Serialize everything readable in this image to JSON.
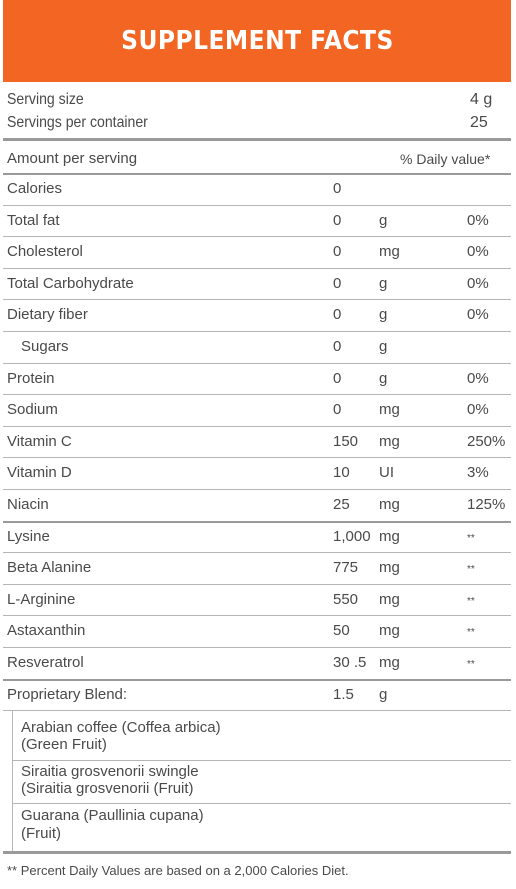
{
  "title": "SUPPLEMENT FACTS",
  "serving": {
    "size_label": "Serving size",
    "size_value": "4 g",
    "per_container_label": "Servings per container",
    "per_container_value": "25"
  },
  "columns": {
    "amount_label": "Amount per serving",
    "dv_label": "% Daily value*"
  },
  "rows": [
    {
      "name": "Calories",
      "amount": "0",
      "unit": "",
      "dv": ""
    },
    {
      "name": "Total fat",
      "amount": "0",
      "unit": "g",
      "dv": "0%"
    },
    {
      "name": "Cholesterol",
      "amount": "0",
      "unit": "mg",
      "dv": "0%"
    },
    {
      "name": "Total Carbohydrate",
      "amount": "0",
      "unit": "g",
      "dv": "0%"
    },
    {
      "name": "Dietary fiber",
      "amount": "0",
      "unit": "g",
      "dv": "0%"
    },
    {
      "name": "Sugars",
      "amount": "0",
      "unit": "g",
      "dv": ""
    },
    {
      "name": "Protein",
      "amount": "0",
      "unit": "g",
      "dv": "0%"
    },
    {
      "name": "Sodium",
      "amount": "0",
      "unit": "mg",
      "dv": "0%"
    },
    {
      "name": "Vitamin C",
      "amount": "150",
      "unit": "mg",
      "dv": "250%"
    },
    {
      "name": "Vitamin D",
      "amount": "10",
      "unit": "UI",
      "dv": "3%"
    },
    {
      "name": "Niacin",
      "amount": "25",
      "unit": "mg",
      "dv": "125%"
    },
    {
      "name": "Lysine",
      "amount": "1,000",
      "unit": "mg",
      "dv": "**"
    },
    {
      "name": "Beta Alanine",
      "amount": "775",
      "unit": "mg",
      "dv": "**"
    },
    {
      "name": "L-Arginine",
      "amount": "550",
      "unit": "mg",
      "dv": "**"
    },
    {
      "name": "Astaxanthin",
      "amount": "50",
      "unit": "mg",
      "dv": "**"
    },
    {
      "name": "Resveratrol",
      "amount": "30 .5",
      "unit": "mg",
      "dv": "**"
    },
    {
      "name": "Proprietary Blend:",
      "amount": "1.5",
      "unit": "g",
      "dv": ""
    }
  ],
  "blend": [
    {
      "line1": "Arabian coffee (Coffea arbica)",
      "line2": "(Green Fruit)"
    },
    {
      "line1": "Siraitia grosvenorii swingle",
      "line2": "(Siraitia grosvenorii (Fruit)"
    },
    {
      "line1": "Guarana (Paullinia cupana)",
      "line2": "(Fruit)"
    }
  ],
  "footnote": "** Percent Daily Values are based on a 2,000 Calories Diet.",
  "colors": {
    "accent": "#f26522",
    "text": "#4a4a4a",
    "rule": "#9a9a9a"
  }
}
